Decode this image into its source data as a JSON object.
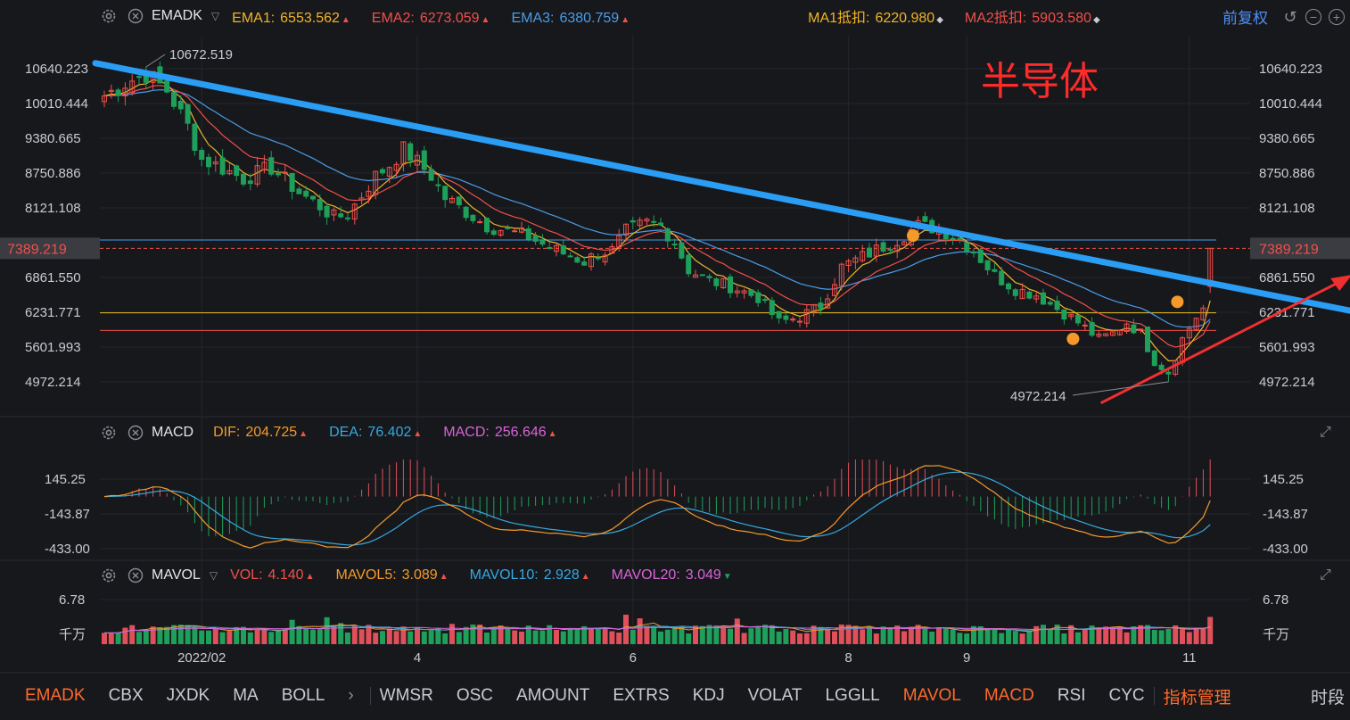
{
  "main_header": {
    "indicator": "EMADK",
    "fields": [
      {
        "label": "EMA1:",
        "value": "6553.562",
        "color": "#f0b429",
        "trend": "up"
      },
      {
        "label": "EMA2:",
        "value": "6273.059",
        "color": "#f0504a",
        "trend": "up"
      },
      {
        "label": "EMA3:",
        "value": "6380.759",
        "color": "#4a9ce8",
        "trend": "up"
      },
      {
        "label": "MA1抵扣:",
        "value": "6220.980",
        "color": "#f0b429",
        "trend": "diamond"
      },
      {
        "label": "MA2抵扣:",
        "value": "5903.580",
        "color": "#f0504a",
        "trend": "diamond"
      }
    ],
    "fuquan": "前复权"
  },
  "macd_header": {
    "indicator": "MACD",
    "fields": [
      {
        "label": "DIF:",
        "value": "204.725",
        "color": "#f59a2a",
        "trend": "up"
      },
      {
        "label": "DEA:",
        "value": "76.402",
        "color": "#35a9e0",
        "trend": "up"
      },
      {
        "label": "MACD:",
        "value": "256.646",
        "color": "#d864d8",
        "trend": "up"
      }
    ]
  },
  "vol_header": {
    "indicator": "MAVOL",
    "fields": [
      {
        "label": "VOL:",
        "value": "4.140",
        "color": "#f0504a",
        "trend": "up"
      },
      {
        "label": "MAVOL5:",
        "value": "3.089",
        "color": "#f59a2a",
        "trend": "up"
      },
      {
        "label": "MAVOL10:",
        "value": "2.928",
        "color": "#35a9e0",
        "trend": "up"
      },
      {
        "label": "MAVOL20:",
        "value": "3.049",
        "color": "#d864d8",
        "trend": "down"
      }
    ]
  },
  "annotation_title": "半导体",
  "bottom_tabs": [
    {
      "label": "EMADK",
      "active": true
    },
    {
      "label": "CBX",
      "active": false
    },
    {
      "label": "JXDK",
      "active": false
    },
    {
      "label": "MA",
      "active": false
    },
    {
      "label": "BOLL",
      "active": false
    },
    {
      "label": "WMSR",
      "active": false
    },
    {
      "label": "OSC",
      "active": false
    },
    {
      "label": "AMOUNT",
      "active": false
    },
    {
      "label": "EXTRS",
      "active": false
    },
    {
      "label": "KDJ",
      "active": false
    },
    {
      "label": "VOLAT",
      "active": false
    },
    {
      "label": "LGGLL",
      "active": false
    },
    {
      "label": "MAVOL",
      "active": true
    },
    {
      "label": "MACD",
      "active": true
    },
    {
      "label": "RSI",
      "active": false
    },
    {
      "label": "CYC",
      "active": false
    }
  ],
  "bottom_manage": "指标管理",
  "bottom_right": "时段",
  "more_arrow": "›",
  "chart_data": [
    {
      "type": "candlestick",
      "y_ticks": [
        "10640.223",
        "10010.444",
        "9380.665",
        "8750.886",
        "8121.108",
        "6861.550",
        "6231.771",
        "5601.993",
        "4972.214"
      ],
      "y_tick_values": [
        10640.223,
        10010.444,
        9380.665,
        8750.886,
        8121.108,
        6861.55,
        6231.771,
        5601.993,
        4972.214
      ],
      "current_price": "7389.219",
      "high_label": "10672.519",
      "low_label": "4972.214",
      "x_ticks": [
        "2022/02",
        "4",
        "6",
        "8",
        "9",
        "11"
      ],
      "x_tick_index": [
        14,
        45,
        76,
        107,
        124,
        156
      ],
      "n_periods": 160,
      "anchors": [
        [
          0,
          10150
        ],
        [
          3,
          10380
        ],
        [
          6,
          10550
        ],
        [
          9,
          10250
        ],
        [
          12,
          9600
        ],
        [
          14,
          9000
        ],
        [
          16,
          8900
        ],
        [
          20,
          8650
        ],
        [
          24,
          8850
        ],
        [
          28,
          8400
        ],
        [
          31,
          8150
        ],
        [
          33,
          7950
        ],
        [
          35,
          8000
        ],
        [
          37,
          8350
        ],
        [
          39,
          8700
        ],
        [
          41,
          8900
        ],
        [
          43,
          9180
        ],
        [
          45,
          8950
        ],
        [
          47,
          8700
        ],
        [
          49,
          8300
        ],
        [
          52,
          8050
        ],
        [
          55,
          7800
        ],
        [
          58,
          7700
        ],
        [
          61,
          7600
        ],
        [
          64,
          7400
        ],
        [
          67,
          7250
        ],
        [
          69,
          7150
        ],
        [
          71,
          7300
        ],
        [
          73,
          7350
        ],
        [
          75,
          7700
        ],
        [
          78,
          7850
        ],
        [
          80,
          7800
        ],
        [
          82,
          7500
        ],
        [
          84,
          7000
        ],
        [
          87,
          6800
        ],
        [
          90,
          6700
        ],
        [
          94,
          6500
        ],
        [
          97,
          6050
        ],
        [
          100,
          6150
        ],
        [
          103,
          6350
        ],
        [
          106,
          7050
        ],
        [
          110,
          7300
        ],
        [
          114,
          7550
        ],
        [
          117,
          7800
        ],
        [
          120,
          7750
        ],
        [
          123,
          7550
        ],
        [
          125,
          7350
        ],
        [
          128,
          6900
        ],
        [
          131,
          6650
        ],
        [
          134,
          6550
        ],
        [
          137,
          6300
        ],
        [
          140,
          6050
        ],
        [
          143,
          5750
        ],
        [
          145,
          5850
        ],
        [
          147,
          6050
        ],
        [
          149,
          5850
        ],
        [
          151,
          5350
        ],
        [
          153,
          5150
        ],
        [
          155,
          5750
        ],
        [
          157,
          6150
        ],
        [
          158,
          6300
        ],
        [
          159,
          7389
        ]
      ],
      "ema1_last": 6553.562,
      "ema2_last": 6273.059,
      "ema3_last": 6380.759,
      "hlines": [
        {
          "value": 7540,
          "color": "#4a9ce8"
        },
        {
          "value": 6220.98,
          "color": "#e8c020"
        },
        {
          "value": 5903.58,
          "color": "#f0504a"
        }
      ],
      "trendline_down": {
        "from": [
          0,
          10740
        ],
        "to": [
          163,
          6570
        ]
      },
      "trendline_up": {
        "from": [
          142,
          4880
        ],
        "to": [
          164,
          6990
        ]
      },
      "markers": [
        {
          "i": 115,
          "value": 7620
        },
        {
          "i": 138,
          "value": 5750
        },
        {
          "i": 153,
          "value": 6420
        }
      ],
      "colors": {
        "up": "#f0504a",
        "down": "#1ea05a",
        "ema1": "#f0b429",
        "ema2": "#f0504a",
        "ema3": "#4a9ce8",
        "trend": "#2a9df4",
        "arrow": "#f03030",
        "marker": "#f59a2a"
      }
    },
    {
      "type": "macd",
      "y_ticks": [
        "145.25",
        "-143.87",
        "-433.00"
      ],
      "y_tick_values": [
        145.25,
        -143.87,
        -433.0
      ],
      "dif_last": 204.725,
      "dea_last": 76.402,
      "macd_last": 256.646,
      "colors": {
        "dif": "#f59a2a",
        "dea": "#35a9e0",
        "pos": "#e0505a",
        "neg": "#1ea05a"
      }
    },
    {
      "type": "volume",
      "y_ticks": [
        "6.78",
        "千万"
      ],
      "vol_max": 6.78,
      "vol_last": 4.14,
      "colors": {
        "up": "#e0505a",
        "down": "#1ea05a",
        "ma5": "#f59a2a",
        "ma10": "#35a9e0",
        "ma20": "#d864d8"
      }
    }
  ]
}
